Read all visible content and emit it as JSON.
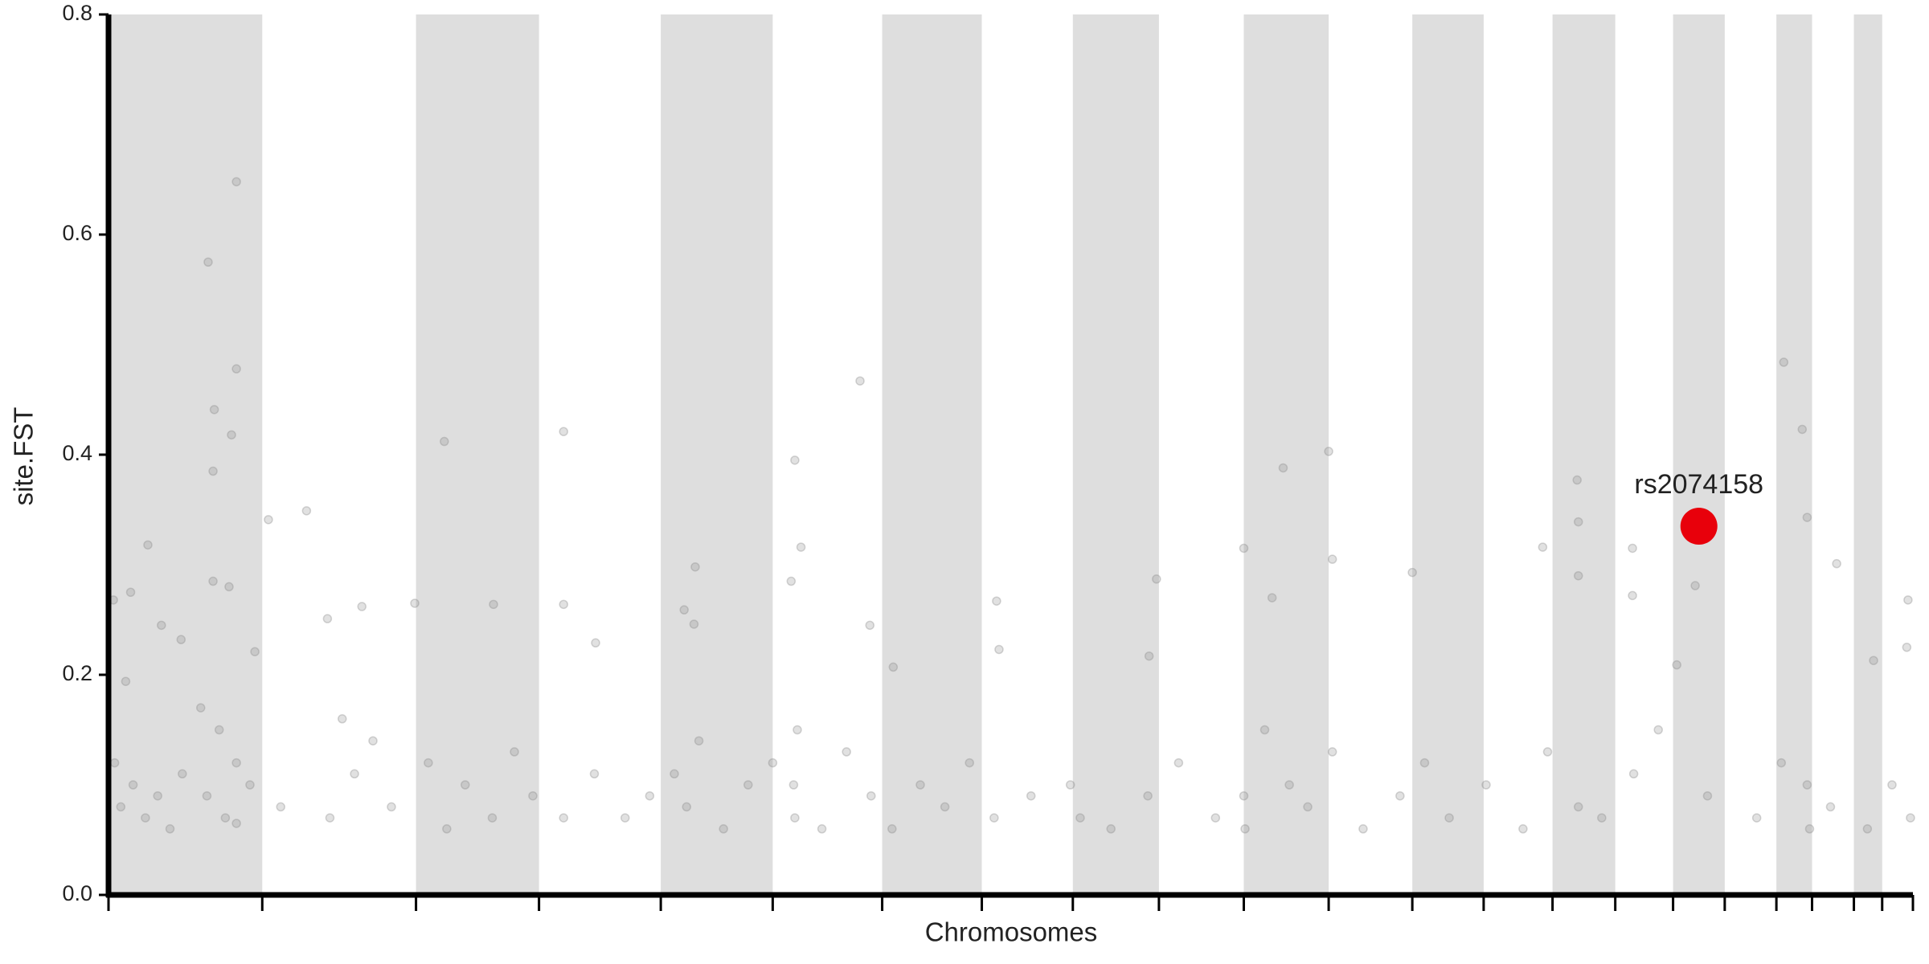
{
  "chart_data": {
    "type": "scatter",
    "ylabel": "site.FST",
    "xlabel": "Chromosomes",
    "ylim": [
      0,
      0.8
    ],
    "yticks": [
      {
        "value": 0,
        "label": "0.0"
      },
      0.2,
      0.4,
      0.6,
      0.8
    ],
    "xlim": [
      0,
      1467
    ],
    "xticks": [
      0,
      125,
      250,
      350,
      449,
      540,
      629,
      710,
      784,
      854,
      923,
      992,
      1060,
      1118,
      1174,
      1225,
      1272,
      1314,
      1356,
      1385,
      1419,
      1442,
      1467
    ],
    "band_color": "#dedede",
    "color": "#888888",
    "x": [
      81,
      104,
      104,
      86,
      85,
      100,
      85,
      98,
      32,
      18,
      4,
      43,
      59,
      14,
      119,
      130,
      161,
      178,
      206,
      249,
      273,
      313,
      370,
      370,
      396,
      468,
      477,
      476,
      558,
      563,
      555,
      611,
      619,
      638,
      722,
      724,
      852,
      846,
      923,
      946,
      955,
      992,
      995,
      1060,
      1166,
      1194,
      1195,
      1195,
      1239,
      1239,
      1275,
      1290,
      1362,
      1377,
      1381,
      1405,
      1435,
      1463,
      1462,
      5,
      10,
      20,
      30,
      40,
      50,
      60,
      75,
      80,
      90,
      95,
      104,
      104,
      115,
      140,
      180,
      190,
      200,
      215,
      230,
      260,
      275,
      290,
      312,
      330,
      345,
      370,
      395,
      420,
      440,
      460,
      470,
      480,
      500,
      520,
      540,
      557,
      558,
      560,
      580,
      600,
      620,
      637,
      660,
      680,
      700,
      720,
      750,
      782,
      790,
      815,
      845,
      870,
      900,
      923,
      924,
      940,
      960,
      975,
      995,
      1020,
      1050,
      1070,
      1090,
      1120,
      1150,
      1170,
      1195,
      1214,
      1240,
      1260,
      1300,
      1340,
      1360,
      1381,
      1383,
      1400,
      1430,
      1450,
      1465
    ],
    "values": [
      0.575,
      0.648,
      0.478,
      0.441,
      0.385,
      0.418,
      0.285,
      0.28,
      0.318,
      0.275,
      0.268,
      0.245,
      0.232,
      0.194,
      0.221,
      0.341,
      0.349,
      0.251,
      0.262,
      0.265,
      0.412,
      0.264,
      0.421,
      0.264,
      0.229,
      0.259,
      0.298,
      0.246,
      0.395,
      0.316,
      0.285,
      0.467,
      0.245,
      0.207,
      0.267,
      0.223,
      0.287,
      0.217,
      0.315,
      0.27,
      0.388,
      0.403,
      0.305,
      0.293,
      0.316,
      0.377,
      0.339,
      0.29,
      0.315,
      0.272,
      0.209,
      0.281,
      0.484,
      0.423,
      0.343,
      0.301,
      0.213,
      0.268,
      0.225,
      0.12,
      0.08,
      0.1,
      0.07,
      0.09,
      0.06,
      0.11,
      0.17,
      0.09,
      0.15,
      0.07,
      0.12,
      0.065,
      0.1,
      0.08,
      0.07,
      0.16,
      0.11,
      0.14,
      0.08,
      0.12,
      0.06,
      0.1,
      0.07,
      0.13,
      0.09,
      0.07,
      0.11,
      0.07,
      0.09,
      0.11,
      0.08,
      0.14,
      0.06,
      0.1,
      0.12,
      0.1,
      0.07,
      0.15,
      0.06,
      0.13,
      0.09,
      0.06,
      0.1,
      0.08,
      0.12,
      0.07,
      0.09,
      0.1,
      0.07,
      0.06,
      0.09,
      0.12,
      0.07,
      0.09,
      0.06,
      0.15,
      0.1,
      0.08,
      0.13,
      0.06,
      0.09,
      0.12,
      0.07,
      0.1,
      0.06,
      0.13,
      0.08,
      0.07,
      0.11,
      0.15,
      0.09,
      0.07,
      0.12,
      0.1,
      0.06,
      0.08,
      0.06,
      0.1,
      0.07
    ],
    "highlight": {
      "label": "rs2074158",
      "x": 1293,
      "value": 0.335,
      "color": "#e8000b"
    }
  }
}
